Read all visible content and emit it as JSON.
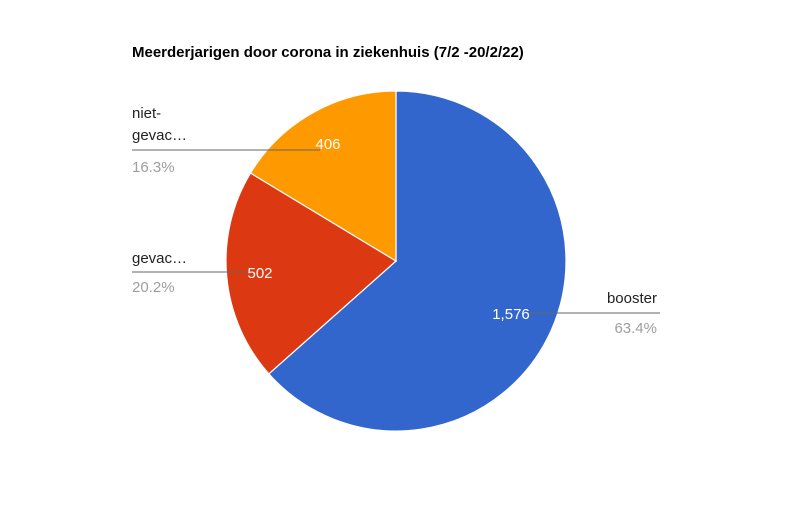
{
  "chart_data": {
    "type": "pie",
    "title": "Meerderjarigen door corona in ziekenhuis (7/2 -20/2/22)",
    "categories": [
      "booster",
      "gevac…",
      "niet-gevac…"
    ],
    "values": [
      1576,
      502,
      406
    ],
    "value_labels": [
      "1,576",
      "502",
      "406"
    ],
    "percentages": [
      63.4,
      20.2,
      16.3
    ],
    "percent_labels": [
      "63.4%",
      "20.2%",
      "16.3%"
    ],
    "colors": [
      "#3366cc",
      "#dc3912",
      "#ff9900"
    ]
  }
}
